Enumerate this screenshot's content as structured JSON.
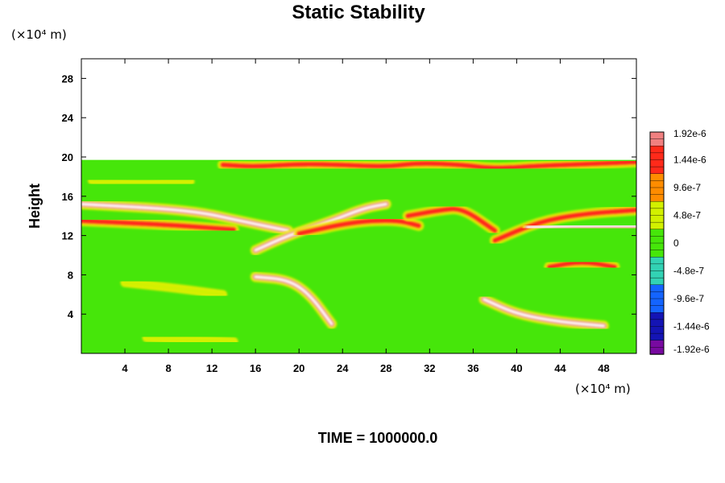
{
  "chart_data": {
    "type": "heatmap",
    "title": "Static Stability",
    "ylabel": "Height",
    "xlabel": "",
    "y_unit": "(×10⁴ m)",
    "x_unit": "(×10⁴ m)",
    "xlim": [
      0,
      51
    ],
    "ylim": [
      0,
      30
    ],
    "x_ticks": [
      4,
      8,
      12,
      16,
      20,
      24,
      28,
      32,
      36,
      40,
      44,
      48
    ],
    "y_ticks": [
      4,
      8,
      12,
      16,
      20,
      24,
      28
    ],
    "x_tick_labels": [
      "4",
      "8",
      "12",
      "16",
      "20",
      "24",
      "28",
      "32",
      "36",
      "40",
      "44",
      "48"
    ],
    "y_tick_labels": [
      "4",
      "8",
      "12",
      "16",
      "20",
      "24",
      "28"
    ],
    "field_top": 19.7,
    "background_value": 0,
    "colorbar": {
      "labels": [
        "1.92e-6",
        "1.44e-6",
        "9.6e-7",
        "4.8e-7",
        "0",
        "-4.8e-7",
        "-9.6e-7",
        "-1.44e-6",
        "-1.92e-6"
      ],
      "values": [
        1.92e-06,
        1.44e-06,
        9.6e-07,
        4.8e-07,
        0,
        -4.8e-07,
        -9.6e-07,
        -1.44e-06,
        -1.92e-06
      ],
      "colors": [
        "#f08080",
        "#ff2a1a",
        "#ff8c00",
        "#d2f000",
        "#46e60a",
        "#32d2b4",
        "#1464ff",
        "#1414b4",
        "#780aa0"
      ]
    },
    "features": [
      {
        "kind": "band",
        "x": [
          0,
          10,
          15,
          19
        ],
        "y": [
          15.2,
          14.6,
          13.4,
          12.5
        ],
        "value": 1.92e-06
      },
      {
        "kind": "band",
        "x": [
          0,
          8,
          14
        ],
        "y": [
          13.5,
          13.1,
          12.6
        ],
        "value": 1.44e-06
      },
      {
        "kind": "band",
        "x": [
          38,
          42,
          46,
          51
        ],
        "y": [
          11.5,
          13.4,
          14.2,
          14.6
        ],
        "value": 1.44e-06
      },
      {
        "kind": "band",
        "x": [
          41,
          45,
          51
        ],
        "y": [
          12.8,
          13.0,
          13.0
        ],
        "value": 1.92e-06
      },
      {
        "kind": "band",
        "x": [
          16,
          19,
          23,
          26,
          28
        ],
        "y": [
          10.5,
          12.0,
          13.5,
          14.8,
          15.2
        ],
        "value": 1.92e-06
      },
      {
        "kind": "band",
        "x": [
          20,
          25,
          29,
          31
        ],
        "y": [
          12.2,
          13.4,
          13.6,
          13.0
        ],
        "value": 1.44e-06
      },
      {
        "kind": "band",
        "x": [
          16,
          19,
          21,
          23
        ],
        "y": [
          7.8,
          7.5,
          6.0,
          3.0
        ],
        "value": 1.92e-06
      },
      {
        "kind": "band",
        "x": [
          37,
          40,
          44,
          48
        ],
        "y": [
          5.5,
          4.0,
          3.2,
          2.8
        ],
        "value": 1.92e-06
      },
      {
        "kind": "band",
        "x": [
          30,
          33,
          35,
          38
        ],
        "y": [
          14.0,
          14.6,
          14.8,
          12.5
        ],
        "value": 1.44e-06
      },
      {
        "kind": "band",
        "x": [
          43,
          46,
          49
        ],
        "y": [
          8.8,
          9.4,
          8.8
        ],
        "value": 1.44e-06
      },
      {
        "kind": "band",
        "x": [
          13,
          16,
          20,
          24,
          28,
          31,
          35,
          38,
          42,
          47,
          51
        ],
        "y": [
          19.2,
          19.0,
          19.3,
          19.2,
          19.0,
          19.4,
          19.2,
          18.8,
          19.1,
          19.3,
          19.5
        ],
        "value": 1.44e-06
      },
      {
        "kind": "band",
        "x": [
          4,
          9,
          13
        ],
        "y": [
          7.2,
          6.6,
          6.0
        ],
        "value": 4.8e-07
      },
      {
        "kind": "band",
        "x": [
          6,
          10,
          14
        ],
        "y": [
          1.6,
          1.4,
          1.2
        ],
        "value": 4.8e-07
      },
      {
        "kind": "band",
        "x": [
          1,
          5,
          10
        ],
        "y": [
          17.6,
          17.2,
          17.5
        ],
        "value": 4.8e-07
      }
    ]
  },
  "footer": {
    "time_label": "TIME = 1000000.0"
  }
}
